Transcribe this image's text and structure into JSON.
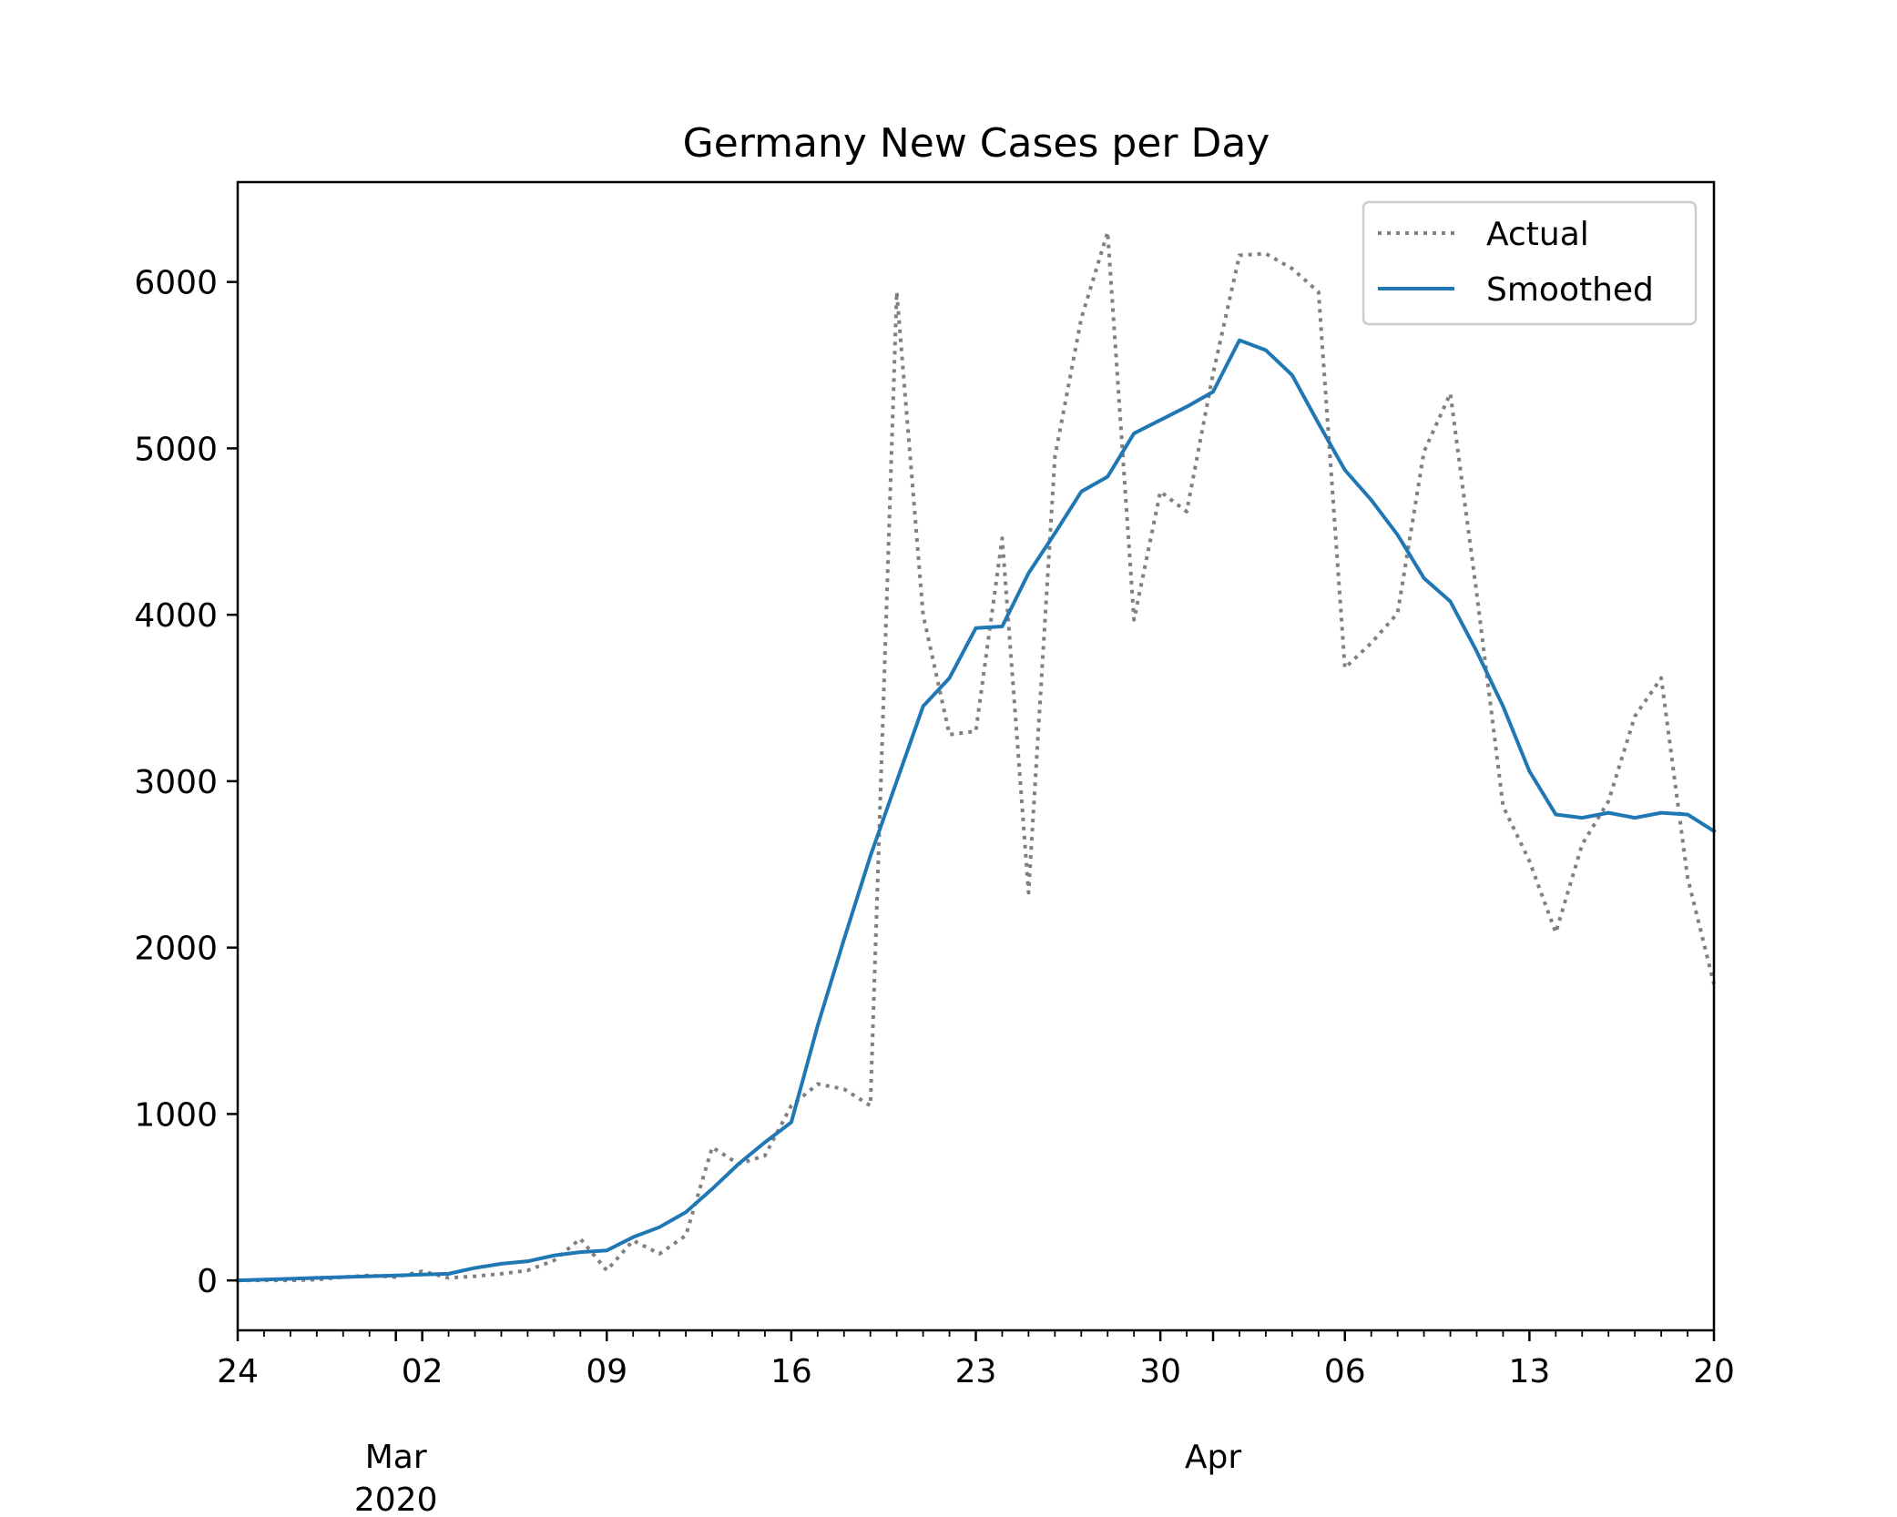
{
  "chart_data": {
    "type": "line",
    "title": "Germany New Cases per Day",
    "xlabel": "",
    "ylabel": "",
    "x_range": [
      "2020-02-24",
      "2020-04-20"
    ],
    "ylim": [
      -300,
      6600
    ],
    "y_ticks": [
      0,
      1000,
      2000,
      3000,
      4000,
      5000,
      6000
    ],
    "x_ticks": [
      {
        "date": "2020-02-24",
        "label": "24"
      },
      {
        "date": "2020-03-02",
        "label": "02"
      },
      {
        "date": "2020-03-09",
        "label": "09"
      },
      {
        "date": "2020-03-16",
        "label": "16"
      },
      {
        "date": "2020-03-23",
        "label": "23"
      },
      {
        "date": "2020-03-30",
        "label": "30"
      },
      {
        "date": "2020-04-06",
        "label": "06"
      },
      {
        "date": "2020-04-13",
        "label": "13"
      },
      {
        "date": "2020-04-20",
        "label": "20"
      }
    ],
    "month_labels": [
      {
        "date": "2020-03-01",
        "label": "Mar",
        "year": "2020"
      },
      {
        "date": "2020-04-01",
        "label": "Apr",
        "year": ""
      }
    ],
    "legend": {
      "location": "upper right"
    },
    "grid": false,
    "x": [
      "2020-02-24",
      "2020-02-25",
      "2020-02-26",
      "2020-02-27",
      "2020-02-28",
      "2020-02-29",
      "2020-03-01",
      "2020-03-02",
      "2020-03-03",
      "2020-03-04",
      "2020-03-05",
      "2020-03-06",
      "2020-03-07",
      "2020-03-08",
      "2020-03-09",
      "2020-03-10",
      "2020-03-11",
      "2020-03-12",
      "2020-03-13",
      "2020-03-14",
      "2020-03-15",
      "2020-03-16",
      "2020-03-17",
      "2020-03-18",
      "2020-03-19",
      "2020-03-20",
      "2020-03-21",
      "2020-03-22",
      "2020-03-23",
      "2020-03-24",
      "2020-03-25",
      "2020-03-26",
      "2020-03-27",
      "2020-03-28",
      "2020-03-29",
      "2020-03-30",
      "2020-03-31",
      "2020-04-01",
      "2020-04-02",
      "2020-04-03",
      "2020-04-04",
      "2020-04-05",
      "2020-04-06",
      "2020-04-07",
      "2020-04-08",
      "2020-04-09",
      "2020-04-10",
      "2020-04-11",
      "2020-04-12",
      "2020-04-13",
      "2020-04-14",
      "2020-04-15",
      "2020-04-16",
      "2020-04-17",
      "2020-04-18",
      "2020-04-19",
      "2020-04-20"
    ],
    "series": [
      {
        "name": "Actual",
        "color": "#808080",
        "style": "dotted",
        "values": [
          0,
          0,
          0,
          5,
          20,
          30,
          20,
          55,
          15,
          25,
          40,
          60,
          120,
          250,
          60,
          240,
          160,
          270,
          800,
          700,
          750,
          1050,
          1180,
          1150,
          1050,
          5940,
          4000,
          3280,
          3300,
          4460,
          2330,
          4950,
          5780,
          6300,
          3970,
          4740,
          4620,
          5450,
          6160,
          6170,
          6080,
          5940,
          3680,
          3830,
          4010,
          4980,
          5330,
          4130,
          2850,
          2520,
          2090,
          2620,
          2880,
          3390,
          3620,
          2420,
          1780
        ]
      },
      {
        "name": "Smoothed",
        "color": "#1f77b4",
        "style": "solid",
        "values": [
          0,
          5,
          10,
          15,
          20,
          25,
          30,
          35,
          40,
          75,
          100,
          115,
          150,
          170,
          180,
          260,
          320,
          410,
          550,
          700,
          830,
          950,
          1530,
          2050,
          2550,
          3000,
          3450,
          3620,
          3920,
          3930,
          4250,
          4490,
          4740,
          4830,
          5090,
          5170,
          5250,
          5340,
          5650,
          5590,
          5440,
          5150,
          4870,
          4690,
          4480,
          4220,
          4080,
          3780,
          3450,
          3060,
          2800,
          2780,
          2810,
          2780,
          2810,
          2800,
          2700
        ]
      }
    ]
  }
}
